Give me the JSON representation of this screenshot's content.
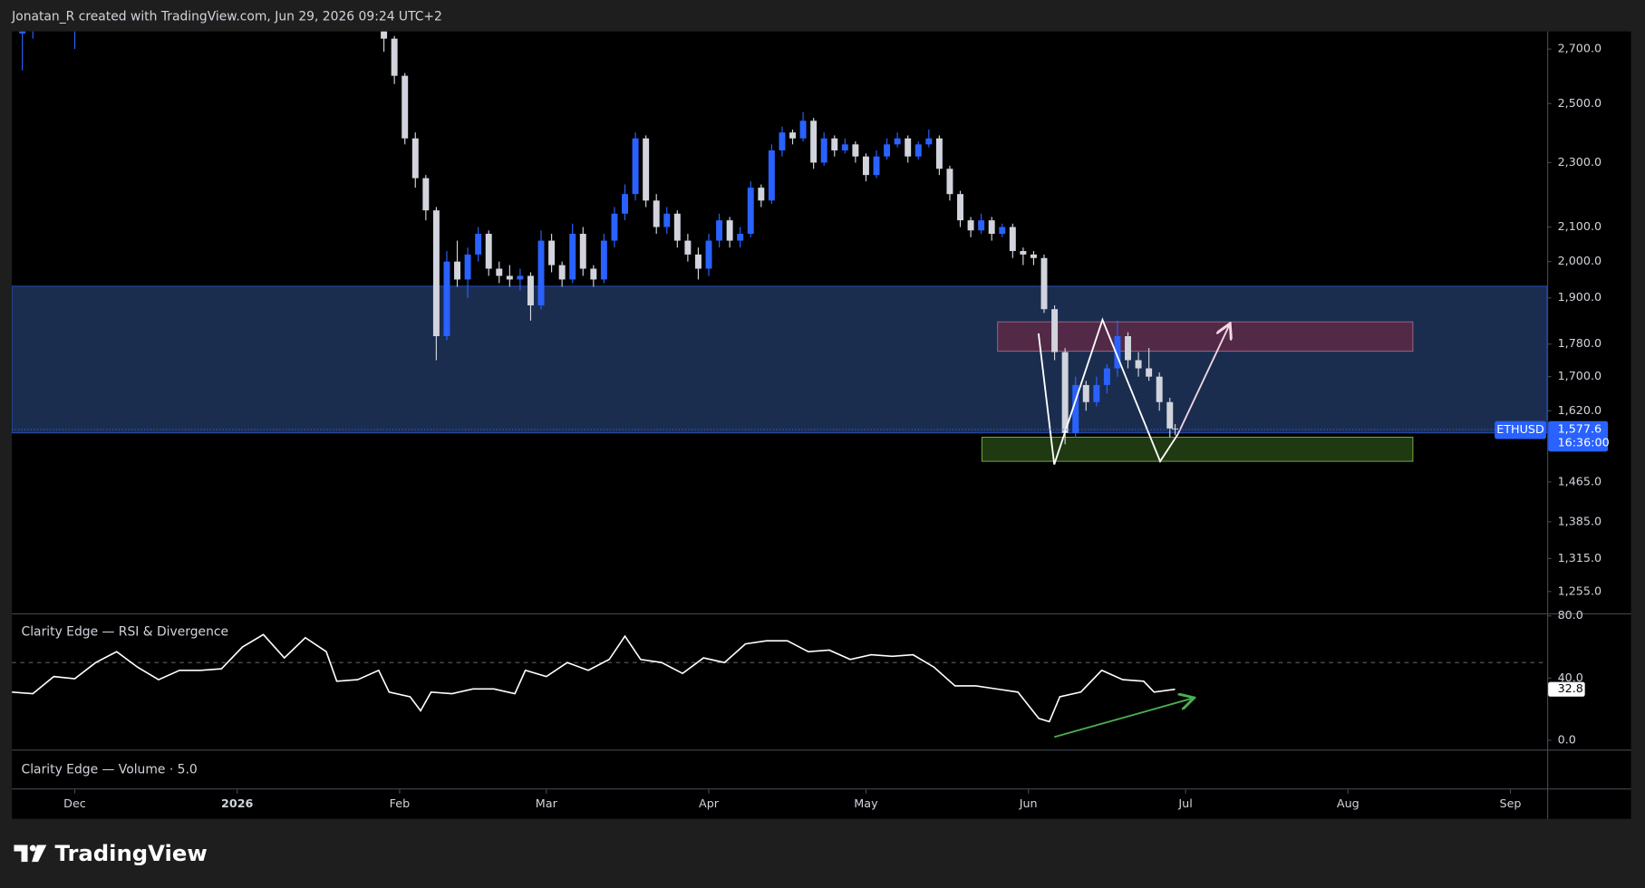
{
  "header": {
    "attribution": "Jonatan_R created with TradingView.com, Jun 29, 2026 09:24 UTC+2"
  },
  "chart_data": [
    {
      "type": "candlestick",
      "symbol": "ETHUSD",
      "log_scale": true,
      "up_color": "#2962ff",
      "down_color": "#d1d4dc",
      "x": [
        -41,
        -39,
        -31,
        28,
        30,
        32,
        34,
        36,
        38,
        40,
        42,
        44,
        46,
        48,
        50,
        52,
        54,
        56,
        58,
        60,
        62,
        64,
        66,
        68,
        70,
        72,
        74,
        76,
        78,
        80,
        82,
        84,
        86,
        88,
        90,
        92,
        94,
        96,
        98,
        100,
        102,
        104,
        106,
        108,
        110,
        112,
        114,
        116,
        118,
        120,
        122,
        124,
        126,
        128,
        130,
        132,
        134,
        136,
        138,
        140,
        142,
        144,
        146,
        148,
        150,
        152,
        154,
        156,
        158,
        160,
        162,
        164,
        166,
        168,
        170,
        172,
        174,
        176,
        178,
        179
      ],
      "open": [
        2760,
        2770,
        2800,
        2790,
        2740,
        2600,
        2380,
        2250,
        2150,
        1800,
        2000,
        1950,
        2020,
        2080,
        1980,
        1960,
        1950,
        1960,
        1880,
        2060,
        1990,
        1950,
        2080,
        1980,
        1950,
        2060,
        2140,
        2200,
        2380,
        2180,
        2100,
        2140,
        2060,
        2020,
        1980,
        2060,
        2120,
        2060,
        2080,
        2220,
        2180,
        2340,
        2400,
        2380,
        2440,
        2300,
        2380,
        2340,
        2360,
        2320,
        2260,
        2320,
        2360,
        2380,
        2320,
        2360,
        2380,
        2280,
        2200,
        2120,
        2090,
        2120,
        2080,
        2100,
        2030,
        2020,
        2010,
        1870,
        1760,
        1570,
        1680,
        1640,
        1680,
        1720,
        1800,
        1740,
        1720,
        1700,
        1640,
        1580
      ],
      "high": [
        2790,
        2800,
        2820,
        2800,
        2750,
        2610,
        2400,
        2260,
        2160,
        2030,
        2060,
        2040,
        2100,
        2090,
        2000,
        1990,
        1980,
        1970,
        2090,
        2080,
        2000,
        2110,
        2100,
        1990,
        2080,
        2160,
        2230,
        2400,
        2390,
        2200,
        2160,
        2150,
        2080,
        2040,
        2080,
        2140,
        2130,
        2100,
        2240,
        2230,
        2360,
        2420,
        2410,
        2470,
        2450,
        2400,
        2390,
        2380,
        2370,
        2330,
        2340,
        2380,
        2400,
        2390,
        2370,
        2410,
        2390,
        2290,
        2210,
        2130,
        2140,
        2130,
        2110,
        2110,
        2040,
        2030,
        2020,
        1880,
        1770,
        1700,
        1690,
        1700,
        1730,
        1840,
        1810,
        1760,
        1770,
        1710,
        1650,
        1590
      ],
      "low": [
        2620,
        2740,
        2700,
        2690,
        2570,
        2360,
        2220,
        2120,
        1740,
        1790,
        1930,
        1900,
        2000,
        1960,
        1940,
        1930,
        1920,
        1840,
        1870,
        1970,
        1930,
        1940,
        1960,
        1930,
        1940,
        2040,
        2120,
        2180,
        2160,
        2080,
        2080,
        2040,
        2000,
        1950,
        1960,
        2040,
        2040,
        2040,
        2070,
        2160,
        2170,
        2320,
        2360,
        2370,
        2280,
        2290,
        2320,
        2330,
        2300,
        2240,
        2250,
        2310,
        2350,
        2300,
        2310,
        2350,
        2260,
        2180,
        2100,
        2070,
        2080,
        2060,
        2070,
        2010,
        1990,
        1990,
        1860,
        1740,
        1545,
        1560,
        1620,
        1630,
        1660,
        1700,
        1720,
        1700,
        1690,
        1620,
        1560,
        1565
      ],
      "close": [
        2770,
        2780,
        2810,
        2740,
        2600,
        2380,
        2250,
        2150,
        1800,
        2000,
        1950,
        2020,
        2080,
        1980,
        1960,
        1950,
        1960,
        1880,
        2060,
        1990,
        1950,
        2080,
        1980,
        1950,
        2060,
        2140,
        2200,
        2380,
        2180,
        2100,
        2140,
        2060,
        2020,
        1980,
        2060,
        2120,
        2060,
        2080,
        2220,
        2180,
        2340,
        2400,
        2380,
        2440,
        2300,
        2380,
        2340,
        2360,
        2320,
        2260,
        2320,
        2360,
        2380,
        2320,
        2360,
        2380,
        2280,
        2200,
        2120,
        2090,
        2120,
        2080,
        2100,
        2030,
        2020,
        2010,
        1870,
        1760,
        1570,
        1680,
        1640,
        1680,
        1720,
        1800,
        1740,
        1720,
        1700,
        1640,
        1580,
        1577.6
      ],
      "xlim": [
        -43,
        250
      ],
      "xticks": [
        {
          "value": -31,
          "label": "Dec"
        },
        {
          "value": 0,
          "label": "2026"
        },
        {
          "value": 31,
          "label": "Feb"
        },
        {
          "value": 59,
          "label": "Mar"
        },
        {
          "value": 90,
          "label": "Apr"
        },
        {
          "value": 120,
          "label": "May"
        },
        {
          "value": 151,
          "label": "Jun"
        },
        {
          "value": 181,
          "label": "Jul"
        },
        {
          "value": 212,
          "label": "Aug"
        },
        {
          "value": 243,
          "label": "Sep"
        }
      ],
      "ylim": [
        1217,
        2768
      ],
      "yticks": [
        {
          "value": 2700,
          "label": "2,700.0"
        },
        {
          "value": 2500,
          "label": "2,500.0"
        },
        {
          "value": 2300,
          "label": "2,300.0"
        },
        {
          "value": 2100,
          "label": "2,100.0"
        },
        {
          "value": 2000,
          "label": "2,000.0"
        },
        {
          "value": 1900,
          "label": "1,900.0"
        },
        {
          "value": 1780,
          "label": "1,780.0"
        },
        {
          "value": 1700,
          "label": "1,700.0"
        },
        {
          "value": 1620,
          "label": "1,620.0"
        },
        {
          "value": 1465,
          "label": "1,465.0"
        },
        {
          "value": 1385,
          "label": "1,385.0"
        },
        {
          "value": 1315,
          "label": "1,315.0"
        },
        {
          "value": 1255,
          "label": "1,255.0"
        }
      ],
      "last_price": {
        "value": 1577.6,
        "label": "1,577.6"
      },
      "countdown": "16:36:00"
    },
    {
      "type": "line",
      "title": "Clarity Edge — RSI & Divergence",
      "color": "#ffffff",
      "x": [
        -43,
        -39,
        -35,
        -31,
        -27,
        -23,
        -19,
        -15,
        -11,
        -7,
        -3,
        1,
        5,
        9,
        13,
        17,
        19,
        23,
        27,
        29,
        33,
        35,
        37,
        41,
        45,
        49,
        53,
        55,
        59,
        63,
        67,
        71,
        74,
        77,
        81,
        85,
        89,
        93,
        97,
        101,
        105,
        109,
        113,
        117,
        121,
        125,
        129,
        133,
        137,
        141,
        145,
        149,
        153,
        155,
        157,
        161,
        165,
        169,
        173,
        175,
        179
      ],
      "values": [
        31,
        30,
        41,
        39.6,
        50,
        57,
        47,
        39,
        45,
        45,
        46,
        60,
        68,
        53,
        66,
        57,
        38,
        39,
        45,
        31,
        28,
        19,
        31,
        30,
        33,
        33,
        30,
        45,
        41,
        50,
        45,
        52,
        67,
        52,
        50,
        43,
        53,
        50,
        62,
        64,
        64,
        57,
        58,
        52,
        55,
        54,
        55,
        47,
        35,
        35,
        33,
        31,
        14,
        12,
        28,
        31,
        45,
        39,
        38,
        31,
        32.8
      ],
      "xlim": [
        -43,
        250
      ],
      "ylim": [
        -6,
        81
      ],
      "yticks": [
        {
          "value": 80,
          "label": "80.0"
        },
        {
          "value": 40,
          "label": "40.0"
        },
        {
          "value": 0,
          "label": "0.0"
        }
      ],
      "last_value": 32.8
    }
  ],
  "volume_pane": {
    "title": "Clarity Edge — Volume · 5.0"
  },
  "footer": {
    "brand": "TradingView"
  }
}
